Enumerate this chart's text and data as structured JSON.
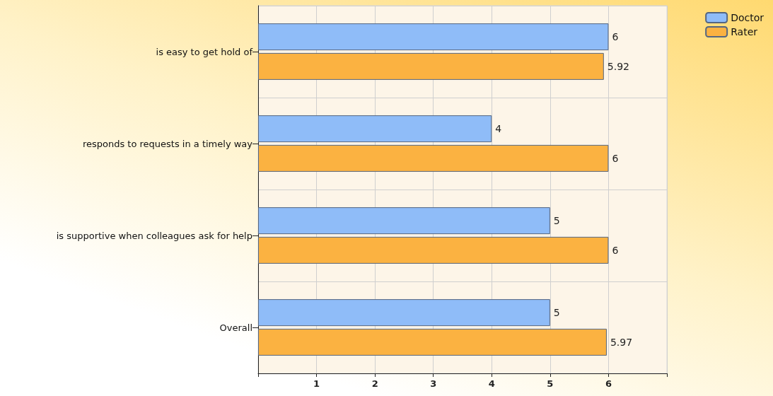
{
  "chart_data": {
    "type": "bar",
    "orientation": "horizontal",
    "categories": [
      "is easy to get hold of",
      "responds to requests in a timely way",
      "is supportive when colleagues ask for help",
      "Overall"
    ],
    "series": [
      {
        "name": "Doctor",
        "color": "#8fbcf8",
        "values": [
          6,
          4,
          5,
          5
        ]
      },
      {
        "name": "Rater",
        "color": "#fbb241",
        "values": [
          5.92,
          6,
          6,
          5.97
        ]
      }
    ],
    "xlim": [
      0,
      7
    ],
    "xticks": [
      {
        "value": 0,
        "label": null
      },
      1,
      2,
      3,
      4,
      5,
      6,
      {
        "value": 7,
        "label": null
      }
    ],
    "grid": true,
    "legend": "top right",
    "data_labels": true
  }
}
